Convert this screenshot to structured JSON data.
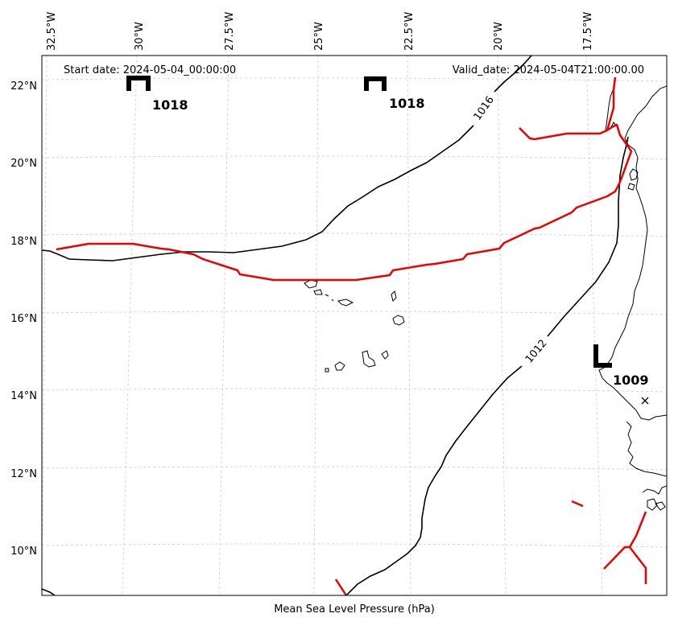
{
  "map": {
    "start_date": "Start date: 2024-05-04_00:00:00",
    "valid_date": "Valid_date: 2024-05-04T21:00:00.00",
    "xlabel": "Mean Sea Level Pressure (hPa)",
    "lon_ticks": [
      "32.5°W",
      "30°W",
      "27.5°W",
      "25°W",
      "22.5°W",
      "20°W",
      "17.5°W"
    ],
    "lat_ticks": [
      "22°N",
      "20°N",
      "18°N",
      "16°N",
      "14°N",
      "12°N",
      "10°N"
    ],
    "pressure_centers": [
      {
        "kind": "high",
        "symbol": "H",
        "value": "1018"
      },
      {
        "kind": "high",
        "symbol": "H",
        "value": "1018"
      },
      {
        "kind": "low",
        "symbol": "L",
        "value": "1009"
      }
    ],
    "isobars": [
      {
        "value": 1016,
        "label": "1016"
      },
      {
        "value": 1012,
        "label": "1012"
      }
    ],
    "colors": {
      "isobar": "#000000",
      "front": "#ee0000",
      "grid": "#cccccc",
      "coast": "#000000"
    }
  }
}
